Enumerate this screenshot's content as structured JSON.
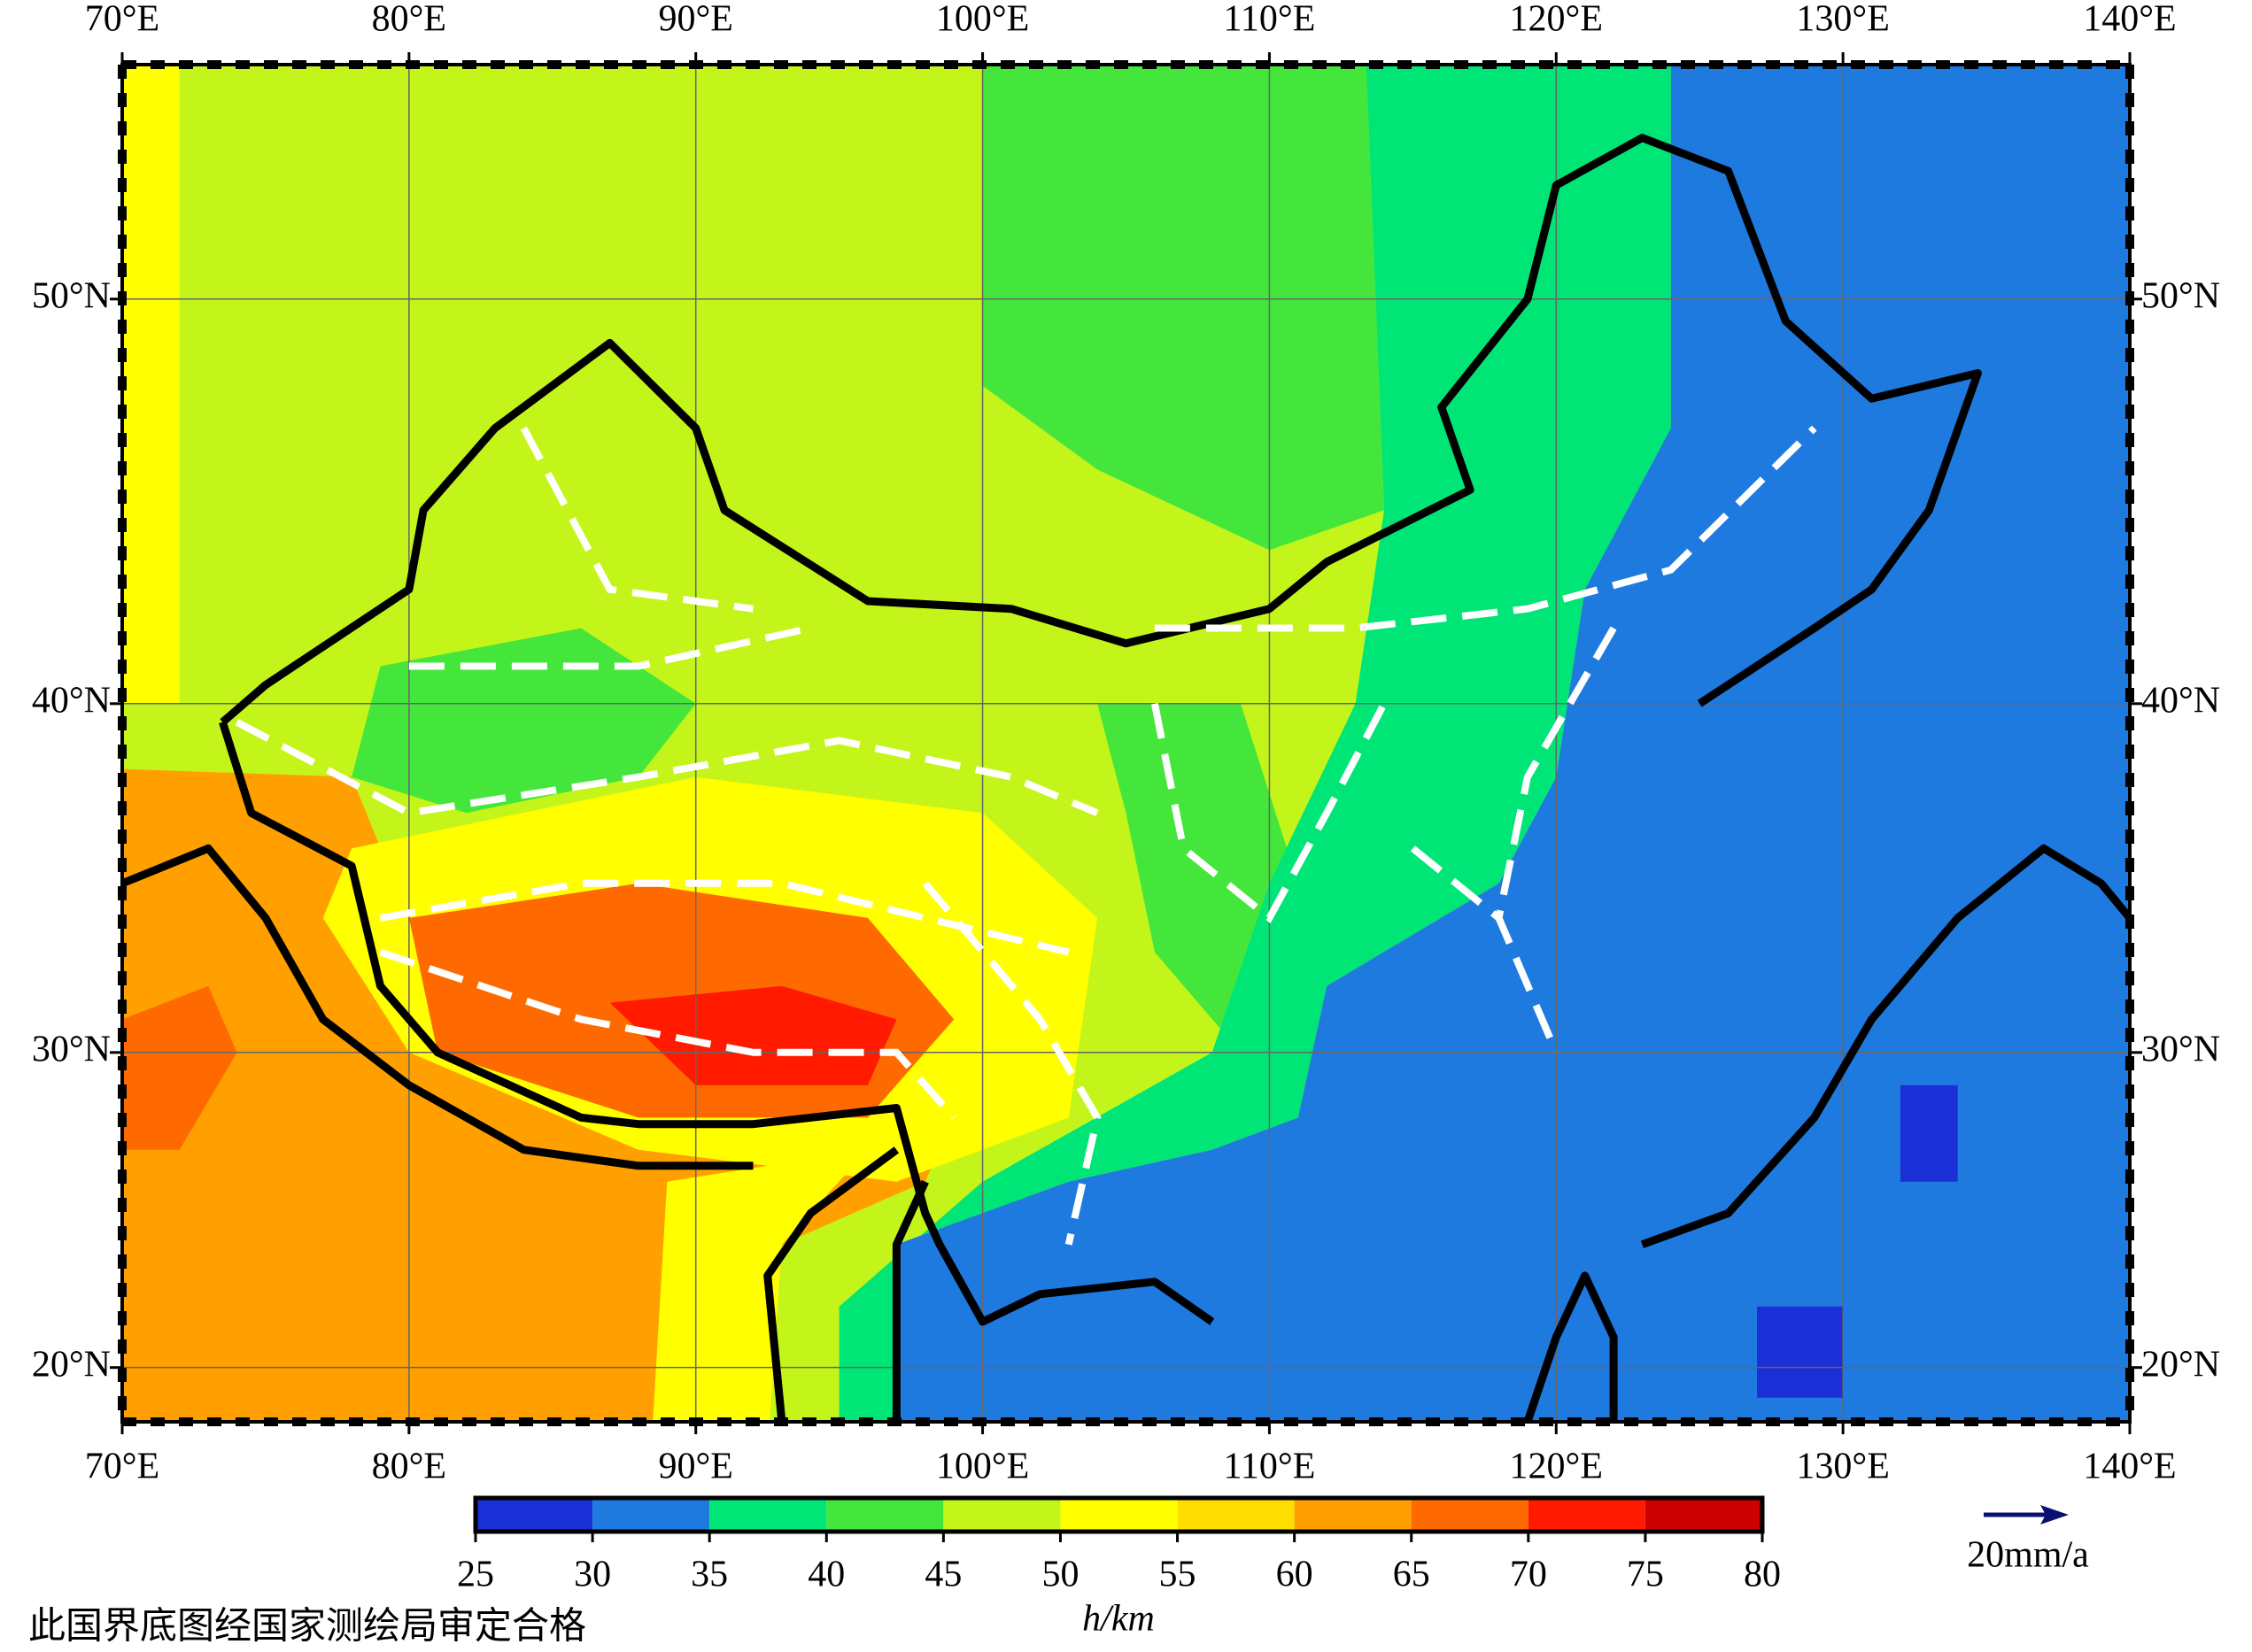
{
  "map": {
    "xlim": [
      70,
      140
    ],
    "ylim": [
      18.2,
      55
    ],
    "xticks": [
      {
        "value": 70,
        "label": "70°E"
      },
      {
        "value": 80,
        "label": "80°E"
      },
      {
        "value": 90,
        "label": "90°E"
      },
      {
        "value": 100,
        "label": "100°E"
      },
      {
        "value": 110,
        "label": "110°E"
      },
      {
        "value": 120,
        "label": "120°E"
      },
      {
        "value": 130,
        "label": "130°E"
      },
      {
        "value": 140,
        "label": "140°E"
      }
    ],
    "yticks": [
      {
        "value": 20,
        "label": "20°N"
      },
      {
        "value": 30,
        "label": "30°N"
      },
      {
        "value": 40,
        "label": "40°N"
      },
      {
        "value": 50,
        "label": "50°N"
      }
    ],
    "grid": true,
    "colorbar": {
      "ticks": [
        25,
        30,
        35,
        40,
        45,
        50,
        55,
        60,
        65,
        70,
        75,
        80
      ],
      "colors": [
        "#1a2fd6",
        "#1f7ae0",
        "#00e676",
        "#45e63c",
        "#c4f51a",
        "#ffff00",
        "#ffdd00",
        "#ff9f00",
        "#ff6a00",
        "#ff1a00",
        "#cc0000"
      ],
      "label": "h/km"
    },
    "scale_label": "20mm/a",
    "note": "此国界底图经国家测绘局审定合格"
  }
}
